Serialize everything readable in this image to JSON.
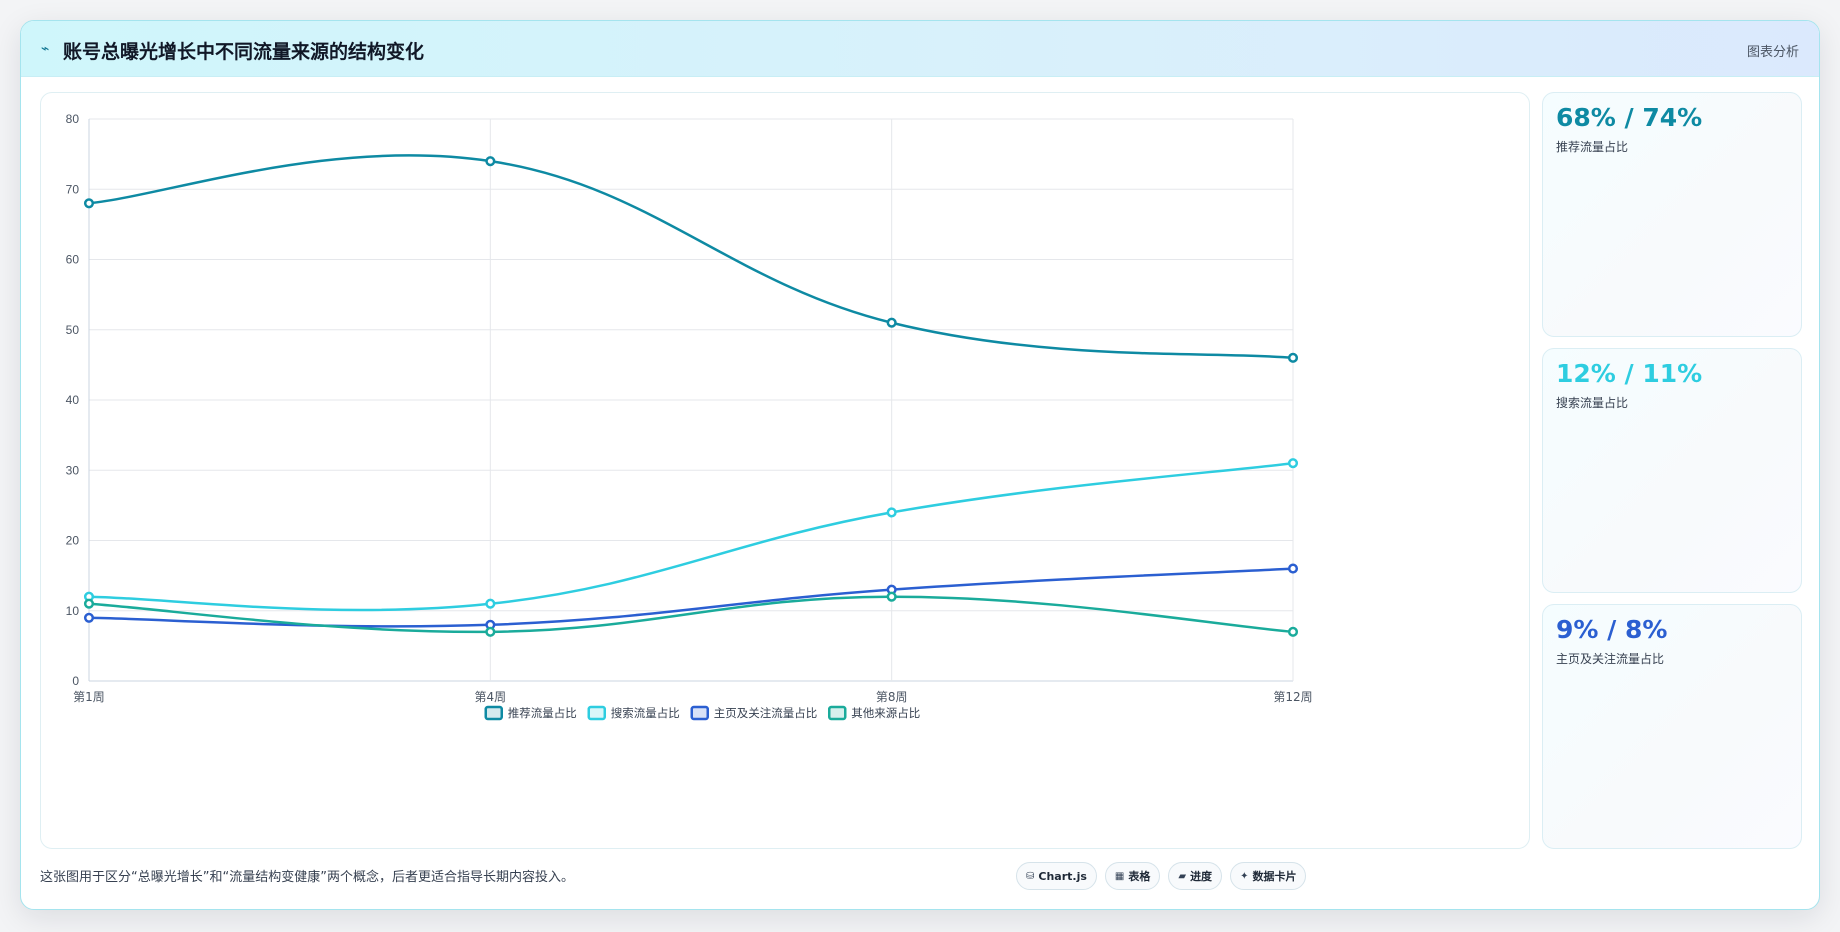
{
  "header": {
    "icon": "line-chart-icon",
    "icon_glyph": "⌁",
    "title": "账号总曝光增长中不同流量来源的结构变化",
    "tag": "图表分析"
  },
  "colors": {
    "recommend": "#0e8aa3",
    "search": "#2ecde0",
    "home_follow": "#2b5fd1",
    "other": "#1aab9b",
    "grid": "#e5e7eb",
    "axis_text": "#4b5563"
  },
  "chart_data": {
    "type": "line",
    "x": [
      "第1周",
      "第4周",
      "第8周",
      "第12周"
    ],
    "ylim": [
      0,
      80
    ],
    "yticks": [
      "0",
      "10",
      "20",
      "30",
      "40",
      "50",
      "60",
      "70",
      "80"
    ],
    "grid": true,
    "legend_position": "bottom",
    "series": [
      {
        "name": "推荐流量占比",
        "values": [
          68,
          74,
          51,
          46
        ],
        "color": "#0e8aa3"
      },
      {
        "name": "搜索流量占比",
        "values": [
          12,
          11,
          24,
          31
        ],
        "color": "#2ecde0"
      },
      {
        "name": "主页及关注流量占比",
        "values": [
          9,
          8,
          13,
          16
        ],
        "color": "#2b5fd1"
      },
      {
        "name": "其他来源占比",
        "values": [
          11,
          7,
          12,
          7
        ],
        "color": "#1aab9b"
      }
    ]
  },
  "stats": [
    {
      "value": "68% / 74%",
      "label": "推荐流量占比",
      "color": "#0e8aa3"
    },
    {
      "value": "12% / 11%",
      "label": "搜索流量占比",
      "color": "#2ecde0"
    },
    {
      "value": "9% / 8%",
      "label": "主页及关注流量占比",
      "color": "#2b5fd1"
    }
  ],
  "footer": {
    "note": "这张图用于区分“总曝光增长”和“流量结构变健康”两个概念，后者更适合指导长期内容投入。",
    "chips": [
      {
        "icon": "database-icon",
        "glyph": "⛁",
        "label": "Chart.js"
      },
      {
        "icon": "table-icon",
        "glyph": "▦",
        "label": "表格"
      },
      {
        "icon": "progress-icon",
        "glyph": "▰",
        "label": "进度"
      },
      {
        "icon": "sparkle-icon",
        "glyph": "✦",
        "label": "数据卡片"
      }
    ]
  }
}
